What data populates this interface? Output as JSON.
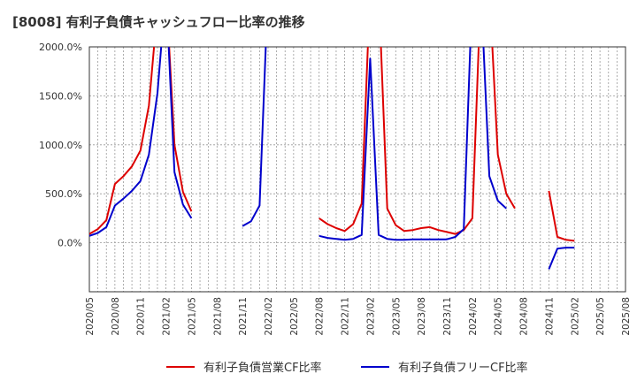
{
  "title": "[8008]  有利子負債キャッシュフロー比率の推移",
  "chart_data": {
    "type": "line",
    "title": "[8008]  有利子負債キャッシュフロー比率の推移",
    "xlabel": "",
    "ylabel": "",
    "ylim": [
      -500,
      2000
    ],
    "yticks": [
      0,
      500,
      1000,
      1500,
      2000
    ],
    "ytick_labels": [
      "0.0%",
      "500.0%",
      "1000.0%",
      "1500.0%",
      "2000.0%"
    ],
    "x_start": "2020-05",
    "x_end": "2025-08",
    "xtick_labels": [
      "2020/05",
      "2020/08",
      "2020/11",
      "2021/02",
      "2021/05",
      "2021/08",
      "2021/11",
      "2022/02",
      "2022/05",
      "2022/08",
      "2022/11",
      "2023/02",
      "2023/05",
      "2023/08",
      "2023/11",
      "2024/02",
      "2024/05",
      "2024/08",
      "2024/11",
      "2025/02",
      "2025/05",
      "2025/08"
    ],
    "grid": true,
    "legend_position": "bottom",
    "series": [
      {
        "name": "有利子負債営業CF比率",
        "color": "#dd0000",
        "segments": [
          [
            [
              "2020-05",
              90
            ],
            [
              "2020-06",
              140
            ],
            [
              "2020-07",
              230
            ],
            [
              "2020-08",
              600
            ],
            [
              "2020-09",
              680
            ],
            [
              "2020-10",
              780
            ],
            [
              "2020-11",
              940
            ],
            [
              "2020-12",
              1400
            ],
            [
              "2021-01",
              2400
            ],
            [
              "2021-02",
              2600
            ],
            [
              "2021-03",
              1000
            ],
            [
              "2021-04",
              520
            ],
            [
              "2021-05",
              320
            ]
          ],
          [
            [
              "2022-08",
              250
            ],
            [
              "2022-09",
              190
            ],
            [
              "2022-10",
              150
            ],
            [
              "2022-11",
              120
            ],
            [
              "2022-12",
              190
            ],
            [
              "2023-01",
              400
            ],
            [
              "2023-02",
              2600
            ],
            [
              "2023-03",
              2600
            ],
            [
              "2023-04",
              350
            ],
            [
              "2023-05",
              180
            ],
            [
              "2023-06",
              120
            ],
            [
              "2023-07",
              130
            ],
            [
              "2023-08",
              150
            ],
            [
              "2023-09",
              160
            ],
            [
              "2023-10",
              130
            ],
            [
              "2023-11",
              110
            ],
            [
              "2023-12",
              90
            ],
            [
              "2024-01",
              130
            ],
            [
              "2024-02",
              250
            ],
            [
              "2024-03",
              2600
            ],
            [
              "2024-04",
              2600
            ],
            [
              "2024-05",
              900
            ],
            [
              "2024-06",
              500
            ],
            [
              "2024-07",
              350
            ]
          ],
          [
            [
              "2024-11",
              530
            ],
            [
              "2024-12",
              60
            ],
            [
              "2025-01",
              30
            ],
            [
              "2025-02",
              20
            ]
          ]
        ]
      },
      {
        "name": "有利子負債フリーCF比率",
        "color": "#0000cc",
        "segments": [
          [
            [
              "2020-05",
              70
            ],
            [
              "2020-06",
              100
            ],
            [
              "2020-07",
              160
            ],
            [
              "2020-08",
              380
            ],
            [
              "2020-09",
              450
            ],
            [
              "2020-10",
              530
            ],
            [
              "2020-11",
              630
            ],
            [
              "2020-12",
              900
            ],
            [
              "2021-01",
              1530
            ],
            [
              "2021-02",
              2600
            ],
            [
              "2021-03",
              720
            ],
            [
              "2021-04",
              390
            ],
            [
              "2021-05",
              250
            ]
          ],
          [
            [
              "2021-11",
              170
            ],
            [
              "2021-12",
              220
            ],
            [
              "2022-01",
              380
            ],
            [
              "2022-02",
              2600
            ]
          ],
          [
            [
              "2022-08",
              70
            ],
            [
              "2022-09",
              50
            ],
            [
              "2022-10",
              40
            ],
            [
              "2022-11",
              30
            ],
            [
              "2022-12",
              40
            ],
            [
              "2023-01",
              80
            ],
            [
              "2023-02",
              1880
            ],
            [
              "2023-03",
              80
            ],
            [
              "2023-04",
              40
            ],
            [
              "2023-05",
              30
            ],
            [
              "2023-06",
              30
            ],
            [
              "2023-07",
              35
            ],
            [
              "2023-08",
              35
            ],
            [
              "2023-09",
              35
            ],
            [
              "2023-10",
              35
            ],
            [
              "2023-11",
              35
            ],
            [
              "2023-12",
              60
            ],
            [
              "2024-01",
              140
            ],
            [
              "2024-02",
              2600
            ],
            [
              "2024-03",
              2600
            ],
            [
              "2024-04",
              680
            ],
            [
              "2024-05",
              430
            ],
            [
              "2024-06",
              350
            ]
          ],
          [
            [
              "2024-11",
              -270
            ],
            [
              "2024-12",
              -60
            ],
            [
              "2025-01",
              -50
            ],
            [
              "2025-02",
              -50
            ]
          ]
        ]
      }
    ]
  }
}
